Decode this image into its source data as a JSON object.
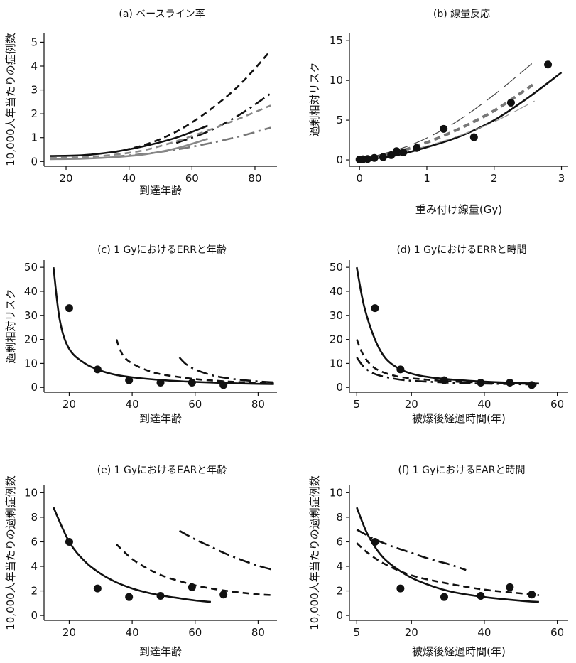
{
  "chart_data": [
    {
      "id": "a",
      "type": "line",
      "title": "(a) ベースライン率",
      "xlabel": "到達年齢",
      "ylabel": "10,000人年当たりの症例数",
      "xlim": [
        13,
        87
      ],
      "ylim": [
        -0.2,
        5.4
      ],
      "xticks": [
        20,
        40,
        60,
        80
      ],
      "yticks": [
        0,
        1,
        2,
        3,
        4,
        5
      ],
      "series": [
        {
          "style": "solid",
          "color": "#111111",
          "points": [
            [
              15,
              0.23
            ],
            [
              25,
              0.26
            ],
            [
              35,
              0.4
            ],
            [
              45,
              0.65
            ],
            [
              55,
              1.0
            ],
            [
              65,
              1.5
            ]
          ]
        },
        {
          "style": "dashed",
          "color": "#111111",
          "points": [
            [
              35,
              0.38
            ],
            [
              45,
              0.7
            ],
            [
              55,
              1.25
            ],
            [
              65,
              2.1
            ],
            [
              75,
              3.2
            ],
            [
              85,
              4.65
            ]
          ]
        },
        {
          "style": "dashdot",
          "color": "#111111",
          "points": [
            [
              55,
              0.78
            ],
            [
              65,
              1.25
            ],
            [
              75,
              1.95
            ],
            [
              85,
              2.85
            ]
          ]
        },
        {
          "style": "dashed",
          "color": "#888888",
          "points": [
            [
              15,
              0.15
            ],
            [
              25,
              0.18
            ],
            [
              35,
              0.28
            ],
            [
              45,
              0.48
            ],
            [
              55,
              0.85
            ],
            [
              65,
              1.3
            ],
            [
              75,
              1.8
            ],
            [
              85,
              2.35
            ]
          ]
        },
        {
          "style": "dashdot",
          "color": "#777777",
          "points": [
            [
              35,
              0.2
            ],
            [
              45,
              0.32
            ],
            [
              55,
              0.5
            ],
            [
              65,
              0.75
            ],
            [
              75,
              1.05
            ],
            [
              85,
              1.42
            ]
          ]
        },
        {
          "style": "solid",
          "color": "#888888",
          "points": [
            [
              15,
              0.1
            ],
            [
              25,
              0.12
            ],
            [
              35,
              0.18
            ],
            [
              45,
              0.3
            ],
            [
              55,
              0.55
            ],
            [
              65,
              0.95
            ]
          ]
        }
      ],
      "points": []
    },
    {
      "id": "b",
      "type": "line",
      "title": "(b) 線量反応",
      "xlabel": "重み付け線量(Gy)",
      "ylabel": "過剰相対リスク",
      "xlim": [
        -0.15,
        3.1
      ],
      "ylim": [
        -0.8,
        16
      ],
      "xticks": [
        0,
        1,
        2,
        3
      ],
      "yticks": [
        0,
        5,
        10,
        15
      ],
      "series": [
        {
          "style": "solid",
          "color": "#111111",
          "points": [
            [
              0,
              0
            ],
            [
              0.5,
              0.5
            ],
            [
              1,
              1.6
            ],
            [
              1.5,
              3.0
            ],
            [
              2,
              5.0
            ],
            [
              2.5,
              7.8
            ],
            [
              3,
              11.0
            ]
          ]
        },
        {
          "style": "dashed",
          "color": "#777777",
          "width": 4,
          "points": [
            [
              0.2,
              0.3
            ],
            [
              0.8,
              1.6
            ],
            [
              1.4,
              3.6
            ],
            [
              2,
              6.2
            ],
            [
              2.6,
              9.6
            ]
          ]
        },
        {
          "style": "longdash",
          "color": "#444444",
          "width": 1.2,
          "points": [
            [
              0.2,
              0.4
            ],
            [
              0.8,
              2.0
            ],
            [
              1.4,
              4.6
            ],
            [
              2,
              8.2
            ],
            [
              2.6,
              12.4
            ]
          ]
        },
        {
          "style": "longdash",
          "color": "#999999",
          "width": 1.2,
          "points": [
            [
              0.2,
              0.2
            ],
            [
              0.8,
              1.3
            ],
            [
              1.4,
              2.8
            ],
            [
              2,
              4.8
            ],
            [
              2.6,
              7.4
            ]
          ]
        }
      ],
      "points": [
        [
          0.0,
          0.05
        ],
        [
          0.05,
          0.08
        ],
        [
          0.12,
          0.12
        ],
        [
          0.22,
          0.25
        ],
        [
          0.35,
          0.35
        ],
        [
          0.47,
          0.6
        ],
        [
          0.55,
          1.1
        ],
        [
          0.65,
          0.95
        ],
        [
          0.85,
          1.5
        ],
        [
          1.25,
          3.9
        ],
        [
          1.7,
          2.85
        ],
        [
          2.25,
          7.2
        ],
        [
          2.8,
          12.0
        ]
      ]
    },
    {
      "id": "c",
      "type": "line",
      "title": "(c) 1 GyにおけるERRと年齢",
      "xlabel": "到達年齢",
      "ylabel": "過剰相対リスク",
      "xlim": [
        12,
        86
      ],
      "ylim": [
        -2,
        53
      ],
      "xticks": [
        20,
        40,
        60,
        80
      ],
      "yticks": [
        0,
        10,
        20,
        30,
        40,
        50
      ],
      "series": [
        {
          "style": "solid",
          "color": "#111111",
          "points": [
            [
              15,
              50
            ],
            [
              17,
              28
            ],
            [
              20,
              16
            ],
            [
              25,
              10
            ],
            [
              30,
              7
            ],
            [
              35,
              5.2
            ],
            [
              40,
              4.2
            ],
            [
              50,
              3.0
            ],
            [
              60,
              2.3
            ],
            [
              70,
              1.8
            ],
            [
              80,
              1.5
            ],
            [
              85,
              1.4
            ]
          ]
        },
        {
          "style": "dashed",
          "color": "#111111",
          "points": [
            [
              35,
              20
            ],
            [
              37,
              13.5
            ],
            [
              40,
              10
            ],
            [
              45,
              7
            ],
            [
              50,
              5.3
            ],
            [
              60,
              3.5
            ],
            [
              70,
              2.5
            ],
            [
              80,
              1.9
            ],
            [
              85,
              1.7
            ]
          ]
        },
        {
          "style": "dashdot",
          "color": "#111111",
          "points": [
            [
              55,
              12.5
            ],
            [
              57,
              9.8
            ],
            [
              60,
              7.5
            ],
            [
              65,
              5.2
            ],
            [
              70,
              3.9
            ],
            [
              75,
              3.1
            ],
            [
              80,
              2.5
            ],
            [
              85,
              2.1
            ]
          ]
        }
      ],
      "points": [
        [
          20,
          33
        ],
        [
          29,
          7.5
        ],
        [
          39,
          3
        ],
        [
          49,
          2
        ],
        [
          59,
          2
        ],
        [
          69,
          1
        ]
      ]
    },
    {
      "id": "d",
      "type": "line",
      "title": "(d) 1 GyにおけるERRと時間",
      "xlabel": "被爆後経過時間(年)",
      "ylabel": "",
      "xlim": [
        3,
        63
      ],
      "ylim": [
        -2,
        53
      ],
      "xticks": [
        5,
        20,
        40,
        60
      ],
      "yticks": [
        0,
        10,
        20,
        30,
        40,
        50
      ],
      "series": [
        {
          "style": "solid",
          "color": "#111111",
          "points": [
            [
              5,
              50
            ],
            [
              7,
              34
            ],
            [
              10,
              20
            ],
            [
              13,
              12
            ],
            [
              17,
              7.5
            ],
            [
              22,
              5
            ],
            [
              30,
              3.4
            ],
            [
              40,
              2.4
            ],
            [
              50,
              1.8
            ],
            [
              55,
              1.6
            ]
          ]
        },
        {
          "style": "dashed",
          "color": "#111111",
          "points": [
            [
              5,
              20
            ],
            [
              7,
              13
            ],
            [
              10,
              8
            ],
            [
              15,
              5
            ],
            [
              20,
              3.8
            ],
            [
              30,
              2.6
            ],
            [
              40,
              2.0
            ],
            [
              50,
              1.6
            ],
            [
              55,
              1.5
            ]
          ]
        },
        {
          "style": "dashdot",
          "color": "#111111",
          "points": [
            [
              5,
              12.5
            ],
            [
              7,
              8.5
            ],
            [
              10,
              5.6
            ],
            [
              15,
              3.7
            ],
            [
              20,
              2.8
            ],
            [
              30,
              2.0
            ],
            [
              40,
              1.6
            ],
            [
              50,
              1.3
            ],
            [
              55,
              1.2
            ]
          ]
        }
      ],
      "points": [
        [
          10,
          33
        ],
        [
          17,
          7.5
        ],
        [
          29,
          3
        ],
        [
          39,
          2
        ],
        [
          47,
          2
        ],
        [
          53,
          1
        ]
      ]
    },
    {
      "id": "e",
      "type": "line",
      "title": "(e) 1 GyにおけるEARと年齢",
      "xlabel": "到達年齢",
      "ylabel": "10,000人年当たりの過剰症例数",
      "xlim": [
        12,
        86
      ],
      "ylim": [
        -0.4,
        10.6
      ],
      "xticks": [
        20,
        40,
        60,
        80
      ],
      "yticks": [
        0,
        2,
        4,
        6,
        8,
        10
      ],
      "series": [
        {
          "style": "solid",
          "color": "#111111",
          "points": [
            [
              15,
              8.8
            ],
            [
              20,
              6.0
            ],
            [
              25,
              4.4
            ],
            [
              30,
              3.4
            ],
            [
              35,
              2.7
            ],
            [
              40,
              2.2
            ],
            [
              45,
              1.85
            ],
            [
              50,
              1.6
            ],
            [
              55,
              1.4
            ],
            [
              60,
              1.22
            ],
            [
              65,
              1.1
            ]
          ]
        },
        {
          "style": "dashed",
          "color": "#111111",
          "points": [
            [
              35,
              5.8
            ],
            [
              40,
              4.6
            ],
            [
              45,
              3.8
            ],
            [
              50,
              3.2
            ],
            [
              55,
              2.8
            ],
            [
              60,
              2.45
            ],
            [
              65,
              2.2
            ],
            [
              70,
              2.0
            ],
            [
              75,
              1.85
            ],
            [
              80,
              1.72
            ],
            [
              85,
              1.65
            ]
          ]
        },
        {
          "style": "dashdot",
          "color": "#111111",
          "points": [
            [
              55,
              6.9
            ],
            [
              60,
              6.2
            ],
            [
              65,
              5.6
            ],
            [
              70,
              5.0
            ],
            [
              75,
              4.5
            ],
            [
              80,
              4.05
            ],
            [
              85,
              3.7
            ]
          ]
        }
      ],
      "points": [
        [
          20,
          6.0
        ],
        [
          29,
          2.2
        ],
        [
          39,
          1.5
        ],
        [
          49,
          1.6
        ],
        [
          59,
          2.3
        ],
        [
          69,
          1.7
        ]
      ]
    },
    {
      "id": "f",
      "type": "line",
      "title": "(f) 1 GyにおけるEARと時間",
      "xlabel": "被爆後経過時間(年)",
      "ylabel": "10,000人年当たりの過剰症例数",
      "xlim": [
        3,
        63
      ],
      "ylim": [
        -0.4,
        10.6
      ],
      "xticks": [
        5,
        20,
        40,
        60
      ],
      "yticks": [
        0,
        2,
        4,
        6,
        8,
        10
      ],
      "series": [
        {
          "style": "solid",
          "color": "#111111",
          "points": [
            [
              5,
              8.8
            ],
            [
              8,
              6.6
            ],
            [
              12,
              4.8
            ],
            [
              17,
              3.6
            ],
            [
              22,
              2.8
            ],
            [
              30,
              2.0
            ],
            [
              40,
              1.5
            ],
            [
              50,
              1.2
            ],
            [
              55,
              1.1
            ]
          ]
        },
        {
          "style": "dashed",
          "color": "#111111",
          "points": [
            [
              5,
              5.9
            ],
            [
              8,
              5.1
            ],
            [
              12,
              4.3
            ],
            [
              17,
              3.6
            ],
            [
              22,
              3.1
            ],
            [
              30,
              2.6
            ],
            [
              40,
              2.1
            ],
            [
              50,
              1.8
            ],
            [
              55,
              1.65
            ]
          ]
        },
        {
          "style": "dashdot",
          "color": "#111111",
          "points": [
            [
              5,
              7.0
            ],
            [
              10,
              6.2
            ],
            [
              15,
              5.6
            ],
            [
              20,
              5.1
            ],
            [
              25,
              4.6
            ],
            [
              30,
              4.2
            ],
            [
              35,
              3.7
            ]
          ]
        }
      ],
      "points": [
        [
          10,
          6.0
        ],
        [
          17,
          2.2
        ],
        [
          29,
          1.5
        ],
        [
          39,
          1.6
        ],
        [
          47,
          2.3
        ],
        [
          53,
          1.7
        ]
      ]
    }
  ]
}
